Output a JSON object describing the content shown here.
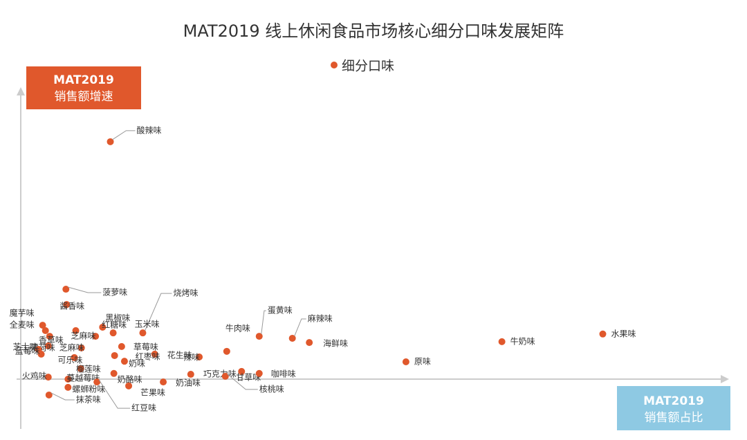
{
  "chart_data": {
    "type": "scatter",
    "title": "MAT2019 线上休闲食品市场核心细分口味发展矩阵",
    "y_label": {
      "line1": "MAT2019",
      "line2": "销售额增速"
    },
    "x_label": {
      "line1": "MAT2019",
      "line2": "销售额占比"
    },
    "xlim": [
      0,
      100
    ],
    "ylim": [
      -10,
      100
    ],
    "series": [
      {
        "name": "细分口味",
        "color": "#e0582c",
        "labels": [
          "酸辣味",
          "水果味",
          "牛奶味",
          "原味",
          "海鲜味",
          "麻辣味",
          "蛋黄味",
          "牛肉味",
          "辣味",
          "花生味",
          "巧克力味",
          "奶油味",
          "核桃味",
          "甘草味",
          "咖啡味",
          "烧烤味",
          "玉米味",
          "菠萝味",
          "酱香味",
          "黑椒味",
          "红糖味",
          "草莓味",
          "红枣味",
          "奶味",
          "芝麻味",
          "芝麻味",
          "可乐味",
          "榴莲味",
          "蔓越莓味",
          "螺蛳粉味",
          "抹茶味",
          "奶酪味",
          "芒果味",
          "红豆味",
          "火鸡味",
          "魔芋味",
          "全麦味",
          "香草味",
          "薄荷味",
          "芝士味",
          "蓝莓味"
        ],
        "x": [
          12.7,
          82.5,
          68.2,
          54.6,
          40.9,
          38.5,
          33.8,
          29.2,
          25.3,
          19.0,
          24.1,
          20.2,
          29.0,
          31.3,
          33.8,
          17.3,
          13.1,
          6.4,
          6.5,
          11.6,
          10.6,
          14.3,
          13.3,
          14.7,
          7.8,
          8.6,
          7.6,
          8.5,
          6.7,
          6.7,
          4.0,
          13.2,
          15.3,
          10.8,
          3.9,
          3.1,
          3.5,
          4.1,
          3.9,
          2.5,
          2.9
        ],
        "values": [
          83.7,
          15.9,
          13.2,
          6.1,
          12.9,
          14.4,
          15.1,
          9.8,
          7.8,
          8.8,
          1.7,
          -1.0,
          1.0,
          2.7,
          2.0,
          16.3,
          16.3,
          31.7,
          26.3,
          18.3,
          15.1,
          11.5,
          8.3,
          6.3,
          17.1,
          11.0,
          7.6,
          3.7,
          0,
          -2.9,
          -5.6,
          2.0,
          -2.4,
          -1.0,
          0.7,
          19.0,
          17.1,
          15.1,
          11.7,
          10.5,
          8.8
        ]
      }
    ]
  }
}
